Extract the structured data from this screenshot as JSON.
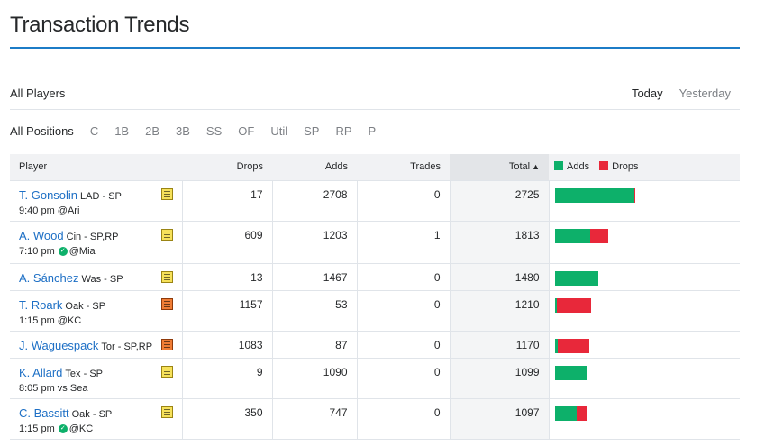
{
  "title": "Transaction Trends",
  "filters": {
    "players": "All Players",
    "days": [
      {
        "label": "Today",
        "active": true
      },
      {
        "label": "Yesterday",
        "active": false
      }
    ],
    "positions": [
      {
        "label": "All Positions",
        "active": true
      },
      {
        "label": "C",
        "active": false
      },
      {
        "label": "1B",
        "active": false
      },
      {
        "label": "2B",
        "active": false
      },
      {
        "label": "3B",
        "active": false
      },
      {
        "label": "SS",
        "active": false
      },
      {
        "label": "OF",
        "active": false
      },
      {
        "label": "Util",
        "active": false
      },
      {
        "label": "SP",
        "active": false
      },
      {
        "label": "RP",
        "active": false
      },
      {
        "label": "P",
        "active": false
      }
    ]
  },
  "table": {
    "headers": {
      "player": "Player",
      "drops": "Drops",
      "adds": "Adds",
      "trades": "Trades",
      "total": "Total",
      "adds_legend": "Adds",
      "drops_legend": "Drops"
    },
    "colors": {
      "adds": "#0db06a",
      "drops": "#e8283a",
      "link": "#1d6fc5"
    },
    "rows": [
      {
        "name": "T. Gonsolin",
        "team": "LAD - SP",
        "game": "9:40 pm @Ari",
        "check": false,
        "note": "yellow",
        "drops": "17",
        "adds": "2708",
        "trades": "0",
        "total": "2725"
      },
      {
        "name": "A. Wood",
        "team": "Cin - SP,RP",
        "game_pre": "7:10 pm",
        "game": "@Mia",
        "check": true,
        "note": "yellow",
        "drops": "609",
        "adds": "1203",
        "trades": "1",
        "total": "1813"
      },
      {
        "name": "A. Sánchez",
        "team": "Was - SP",
        "game": "",
        "check": false,
        "note": "yellow",
        "drops": "13",
        "adds": "1467",
        "trades": "0",
        "total": "1480"
      },
      {
        "name": "T. Roark",
        "team": "Oak - SP",
        "game": "1:15 pm @KC",
        "check": false,
        "note": "red",
        "drops": "1157",
        "adds": "53",
        "trades": "0",
        "total": "1210"
      },
      {
        "name": "J. Waguespack",
        "team": "Tor - SP,RP",
        "game": "",
        "check": false,
        "note": "red",
        "drops": "1083",
        "adds": "87",
        "trades": "0",
        "total": "1170"
      },
      {
        "name": "K. Allard",
        "team": "Tex - SP",
        "game": "8:05 pm vs Sea",
        "check": false,
        "note": "yellow",
        "drops": "9",
        "adds": "1090",
        "trades": "0",
        "total": "1099"
      },
      {
        "name": "C. Bassitt",
        "team": "Oak - SP",
        "game_pre": "1:15 pm",
        "game": "@KC",
        "check": true,
        "note": "yellow",
        "drops": "350",
        "adds": "747",
        "trades": "0",
        "total": "1097"
      }
    ]
  }
}
